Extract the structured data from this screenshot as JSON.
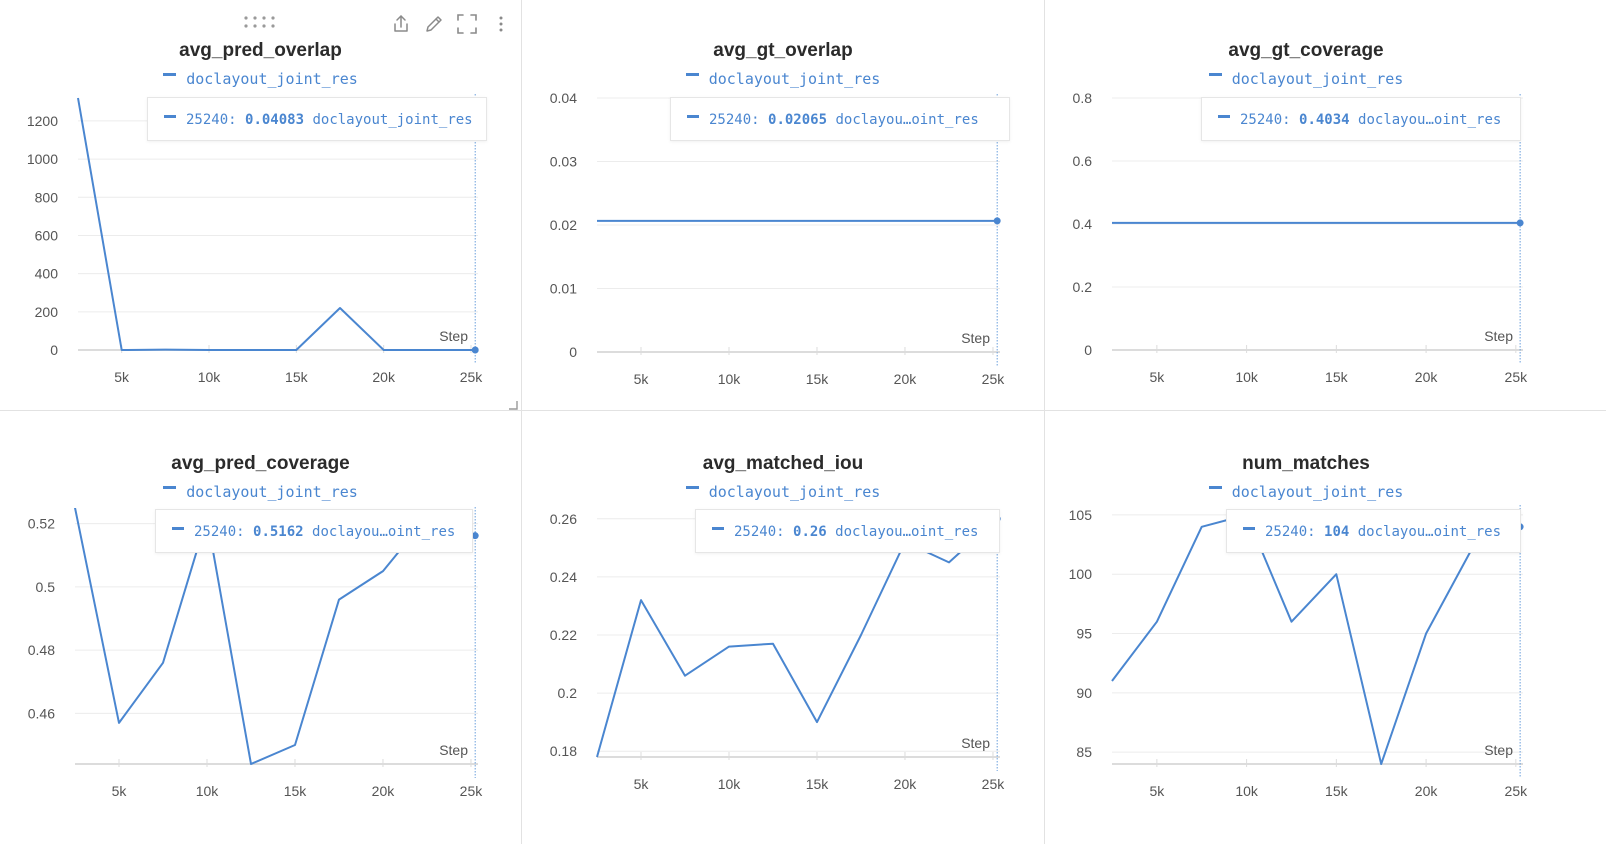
{
  "x_axis_label": "Step",
  "x_ticks": [
    5000,
    10000,
    15000,
    20000,
    25000
  ],
  "x_tick_labels": [
    "5k",
    "10k",
    "15k",
    "20k",
    "25k"
  ],
  "x_range": [
    2500,
    25400
  ],
  "hover_step": 25240,
  "line_color": "#4a86d0",
  "toolbar": {
    "icons": [
      "share-icon",
      "edit-pencil-icon",
      "fullscreen-icon",
      "more-options-icon",
      "drag-handle-icon",
      "resize-corner-icon"
    ]
  },
  "chart_data": [
    {
      "type": "line",
      "title": "avg_pred_overlap",
      "legend": "doclayout_joint_res",
      "tooltip": {
        "step": "25240:",
        "value": "0.04083",
        "series": "doclayout_joint_res"
      },
      "ylim": [
        0,
        1320
      ],
      "y_ticks": [
        0,
        200,
        400,
        600,
        800,
        1000,
        1200
      ],
      "y_tick_labels": [
        "0",
        "200",
        "400",
        "600",
        "800",
        "1000",
        "1200"
      ],
      "series": [
        {
          "name": "doclayout_joint_res",
          "x": [
            2500,
            5000,
            7500,
            10000,
            12500,
            15000,
            17500,
            20000,
            22500,
            25240
          ],
          "y": [
            1320,
            0,
            2,
            0,
            0,
            0,
            220,
            0,
            0,
            0.04083
          ]
        }
      ]
    },
    {
      "type": "line",
      "title": "avg_gt_overlap",
      "legend": "doclayout_joint_res",
      "tooltip": {
        "step": "25240:",
        "value": "0.02065",
        "series": "doclayou…oint_res"
      },
      "ylim": [
        0,
        0.04
      ],
      "y_ticks": [
        0,
        0.01,
        0.02,
        0.03,
        0.04
      ],
      "y_tick_labels": [
        "0",
        "0.01",
        "0.02",
        "0.03",
        "0.04"
      ],
      "series": [
        {
          "name": "doclayout_joint_res",
          "x": [
            2500,
            25240
          ],
          "y": [
            0.02065,
            0.02065
          ]
        }
      ]
    },
    {
      "type": "line",
      "title": "avg_gt_coverage",
      "legend": "doclayout_joint_res",
      "tooltip": {
        "step": "25240:",
        "value": "0.4034",
        "series": "doclayou…oint_res"
      },
      "ylim": [
        0,
        0.8
      ],
      "y_ticks": [
        0,
        0.2,
        0.4,
        0.6,
        0.8
      ],
      "y_tick_labels": [
        "0",
        "0.2",
        "0.4",
        "0.6",
        "0.8"
      ],
      "series": [
        {
          "name": "doclayout_joint_res",
          "x": [
            2500,
            25240
          ],
          "y": [
            0.4034,
            0.4034
          ]
        }
      ]
    },
    {
      "type": "line",
      "title": "avg_pred_coverage",
      "legend": "doclayout_joint_res",
      "tooltip": {
        "step": "25240:",
        "value": "0.5162",
        "series": "doclayou…oint_res"
      },
      "ylim": [
        0.444,
        0.524
      ],
      "y_ticks": [
        0.46,
        0.48,
        0.5,
        0.52
      ],
      "y_tick_labels": [
        "0.46",
        "0.48",
        "0.5",
        "0.52"
      ],
      "series": [
        {
          "name": "doclayout_joint_res",
          "x": [
            2500,
            5000,
            7500,
            10000,
            12500,
            15000,
            17500,
            20000,
            22500,
            25240
          ],
          "y": [
            0.525,
            0.457,
            0.476,
            0.522,
            0.444,
            0.45,
            0.496,
            0.505,
            0.522,
            0.5162
          ]
        }
      ]
    },
    {
      "type": "line",
      "title": "avg_matched_iou",
      "legend": "doclayout_joint_res",
      "tooltip": {
        "step": "25240:",
        "value": "0.26",
        "series": "doclayou…oint_res"
      },
      "ylim": [
        0.178,
        0.262
      ],
      "y_ticks": [
        0.18,
        0.2,
        0.22,
        0.24,
        0.26
      ],
      "y_tick_labels": [
        "0.18",
        "0.2",
        "0.22",
        "0.24",
        "0.26"
      ],
      "series": [
        {
          "name": "doclayout_joint_res",
          "x": [
            2500,
            5000,
            7500,
            10000,
            12500,
            15000,
            17500,
            20000,
            22500,
            25240
          ],
          "y": [
            0.178,
            0.232,
            0.206,
            0.216,
            0.217,
            0.19,
            0.22,
            0.252,
            0.245,
            0.26
          ]
        }
      ]
    },
    {
      "type": "line",
      "title": "num_matches",
      "legend": "doclayout_joint_res",
      "tooltip": {
        "step": "25240:",
        "value": "104",
        "series": "doclayou…oint_res"
      },
      "ylim": [
        84,
        105.5
      ],
      "y_ticks": [
        85,
        90,
        95,
        100,
        105
      ],
      "y_tick_labels": [
        "85",
        "90",
        "95",
        "100",
        "105"
      ],
      "series": [
        {
          "name": "doclayout_joint_res",
          "x": [
            2500,
            5000,
            7500,
            10000,
            12500,
            15000,
            17500,
            20000,
            22500,
            25240
          ],
          "y": [
            91,
            96,
            104,
            105,
            96,
            100,
            84,
            95,
            102,
            104
          ]
        }
      ]
    }
  ]
}
